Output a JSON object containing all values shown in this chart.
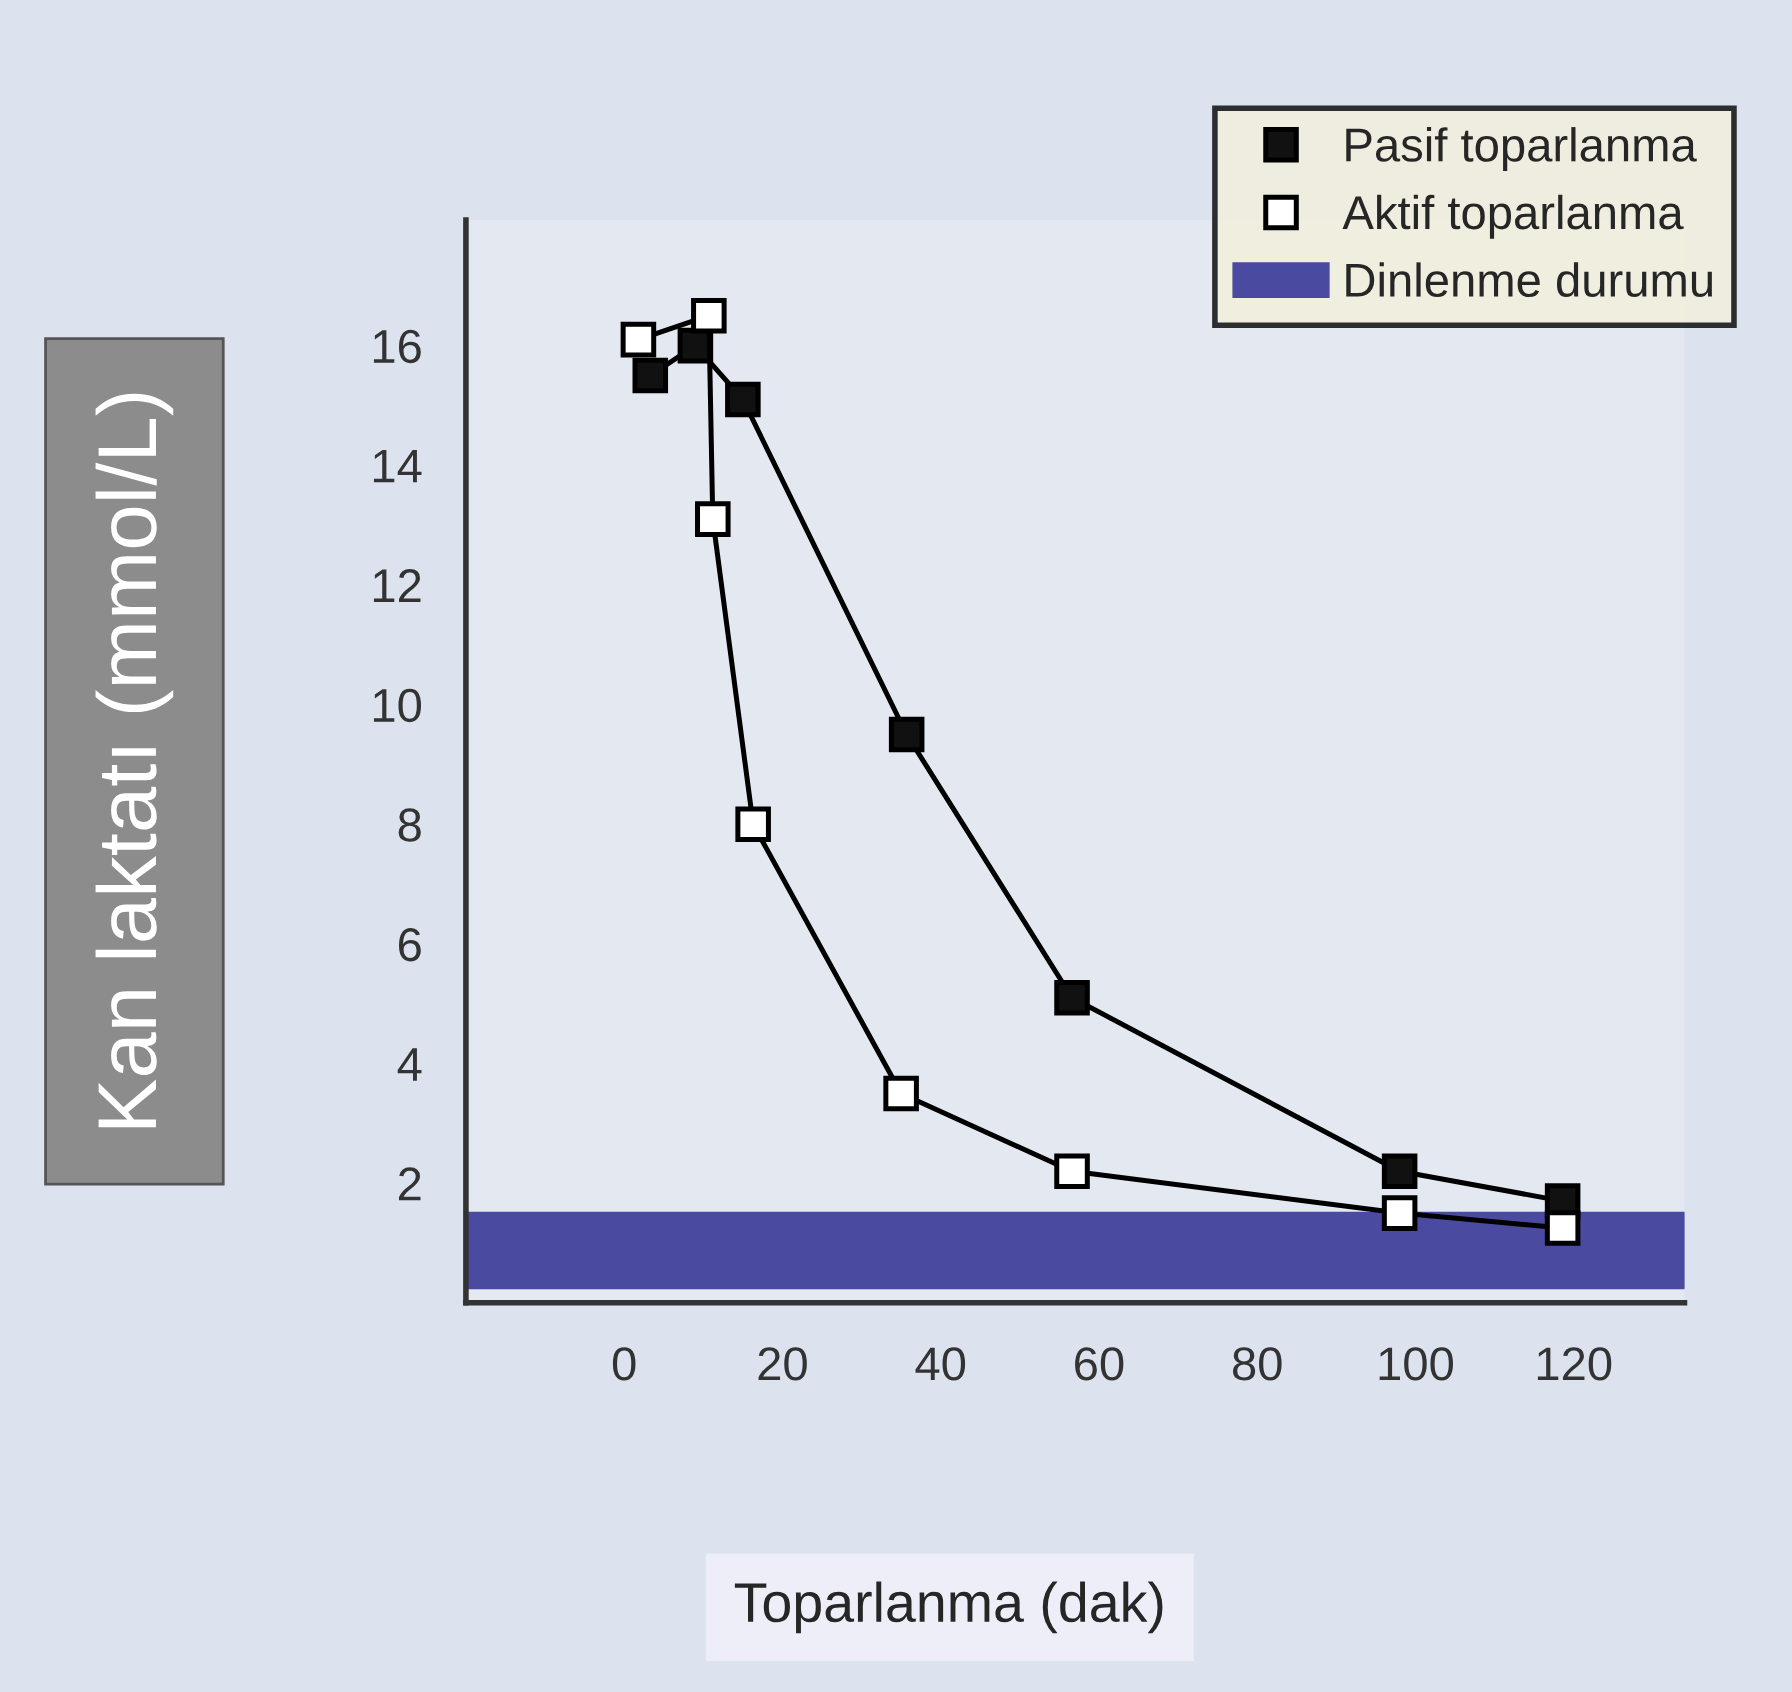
{
  "chart_data": {
    "type": "line",
    "xlabel": "Toparlanma (dak)",
    "ylabel": "Kan laktatı (mmol/L)",
    "series": [
      {
        "name": "Pasif toparlanma",
        "color": "#111111",
        "x": [
          3.3,
          9,
          15,
          35.7,
          56.6,
          98,
          118.6
        ],
        "values": [
          15.5,
          16.0,
          15.1,
          9.5,
          5.1,
          2.2,
          1.7
        ]
      },
      {
        "name": "Aktif toparlanma",
        "color": "#ffffff",
        "x": [
          1.8,
          10.7,
          11.2,
          16.3,
          35,
          56.6,
          98,
          118.6
        ],
        "values": [
          16.1,
          16.5,
          13.1,
          8.0,
          3.5,
          2.2,
          1.5,
          1.25
        ]
      }
    ],
    "bands": [
      {
        "axis": "y",
        "from": 0.25,
        "to": 1.5,
        "label": "Dinlenme durumu",
        "color": "#4a4aa0"
      }
    ],
    "xlim": [
      -20,
      134
    ],
    "ylim": [
      0,
      18.1
    ],
    "xticks": [
      0,
      20,
      40,
      60,
      80,
      100,
      120
    ],
    "yticks": [
      2,
      4,
      6,
      8,
      10,
      12,
      14,
      16
    ],
    "marker": "square",
    "line_style": "solid",
    "grid": false,
    "legend": "top right"
  }
}
